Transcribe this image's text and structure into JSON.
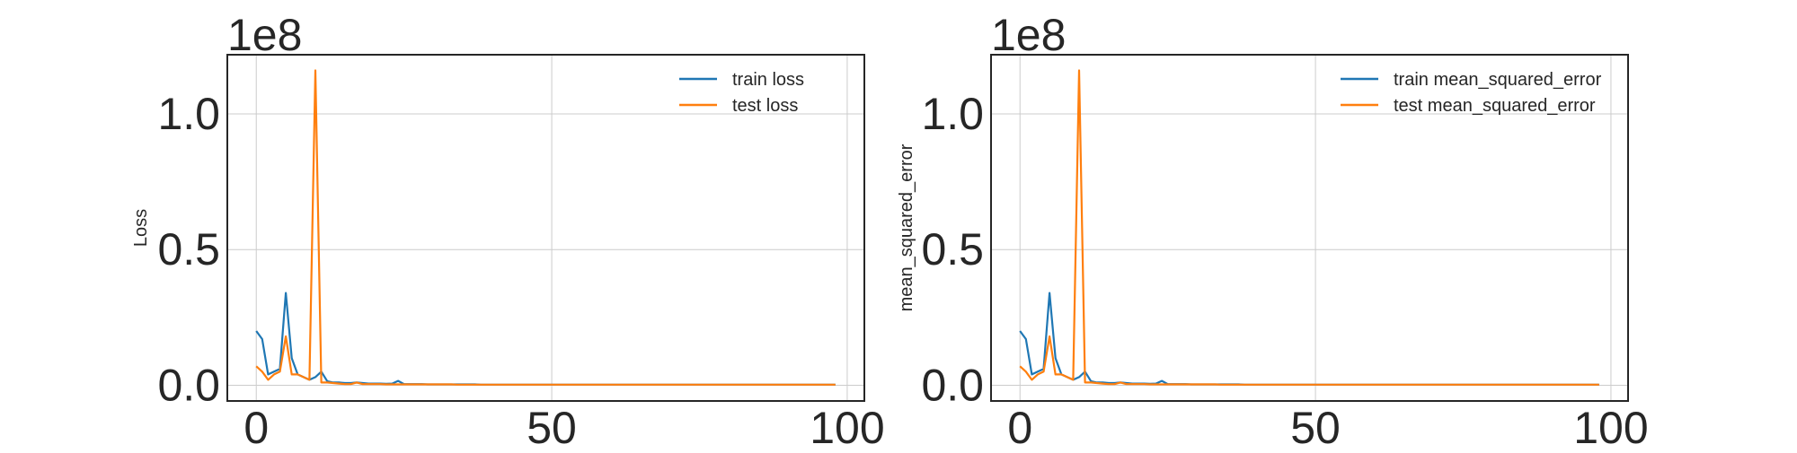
{
  "colors": {
    "train": "#1f77b4",
    "test": "#ff7f0e",
    "grid": "#cccccc",
    "frame": "#262626"
  },
  "chart_data": [
    {
      "type": "line",
      "title": "",
      "xlabel": "",
      "ylabel": "Loss",
      "offset_text": "1e8",
      "scale": 100000000,
      "xlim": [
        -4.9,
        102.9
      ],
      "ylim": [
        -0.058,
        1.218
      ],
      "xticks": [
        0,
        50,
        100
      ],
      "xtick_labels": [
        "0",
        "50",
        "100"
      ],
      "yticks": [
        0.0,
        0.5,
        1.0
      ],
      "ytick_labels": [
        "0.0",
        "0.5",
        "1.0"
      ],
      "grid": true,
      "legend_position": "top-right",
      "series": [
        {
          "name": "train loss",
          "color": "#1f77b4",
          "x": [
            0,
            1,
            2,
            3,
            4,
            5,
            6,
            7,
            8,
            9,
            10,
            11,
            12,
            13,
            14,
            15,
            16,
            17,
            18,
            19,
            20,
            21,
            22,
            23,
            24,
            25,
            26,
            27,
            28,
            29,
            30,
            31,
            32,
            33,
            34,
            35,
            36,
            37,
            38,
            39,
            40,
            45,
            50,
            55,
            60,
            65,
            70,
            75,
            80,
            85,
            90,
            95,
            98
          ],
          "y": [
            0.2,
            0.17,
            0.04,
            0.05,
            0.06,
            0.34,
            0.1,
            0.04,
            0.03,
            0.02,
            0.03,
            0.05,
            0.015,
            0.01,
            0.01,
            0.008,
            0.008,
            0.01,
            0.008,
            0.006,
            0.006,
            0.006,
            0.005,
            0.006,
            0.016,
            0.004,
            0.004,
            0.004,
            0.004,
            0.003,
            0.003,
            0.003,
            0.003,
            0.003,
            0.003,
            0.003,
            0.003,
            0.003,
            0.002,
            0.002,
            0.002,
            0.002,
            0.002,
            0.002,
            0.002,
            0.002,
            0.002,
            0.002,
            0.002,
            0.002,
            0.002,
            0.002,
            0.002
          ]
        },
        {
          "name": "test loss",
          "color": "#ff7f0e",
          "x": [
            0,
            1,
            2,
            3,
            4,
            5,
            6,
            7,
            8,
            9,
            10,
            11,
            12,
            13,
            14,
            15,
            16,
            17,
            18,
            19,
            20,
            21,
            22,
            23,
            24,
            25,
            26,
            27,
            28,
            29,
            30,
            31,
            32,
            33,
            34,
            35,
            36,
            37,
            38,
            39,
            40,
            45,
            50,
            55,
            60,
            65,
            70,
            75,
            80,
            85,
            90,
            95,
            98
          ],
          "y": [
            0.07,
            0.05,
            0.02,
            0.04,
            0.05,
            0.18,
            0.04,
            0.04,
            0.03,
            0.02,
            1.16,
            0.01,
            0.01,
            0.008,
            0.006,
            0.004,
            0.004,
            0.01,
            0.004,
            0.004,
            0.004,
            0.004,
            0.003,
            0.003,
            0.003,
            0.003,
            0.003,
            0.003,
            0.003,
            0.003,
            0.003,
            0.003,
            0.003,
            0.003,
            0.002,
            0.002,
            0.002,
            0.002,
            0.002,
            0.002,
            0.002,
            0.002,
            0.002,
            0.002,
            0.002,
            0.002,
            0.002,
            0.002,
            0.002,
            0.002,
            0.002,
            0.002,
            0.002
          ]
        }
      ]
    },
    {
      "type": "line",
      "title": "",
      "xlabel": "",
      "ylabel": "mean_squared_error",
      "offset_text": "1e8",
      "scale": 100000000,
      "xlim": [
        -4.9,
        102.9
      ],
      "ylim": [
        -0.058,
        1.218
      ],
      "xticks": [
        0,
        50,
        100
      ],
      "xtick_labels": [
        "0",
        "50",
        "100"
      ],
      "yticks": [
        0.0,
        0.5,
        1.0
      ],
      "ytick_labels": [
        "0.0",
        "0.5",
        "1.0"
      ],
      "grid": true,
      "legend_position": "top-right",
      "series": [
        {
          "name": "train mean_squared_error",
          "color": "#1f77b4",
          "x": [
            0,
            1,
            2,
            3,
            4,
            5,
            6,
            7,
            8,
            9,
            10,
            11,
            12,
            13,
            14,
            15,
            16,
            17,
            18,
            19,
            20,
            21,
            22,
            23,
            24,
            25,
            26,
            27,
            28,
            29,
            30,
            31,
            32,
            33,
            34,
            35,
            36,
            37,
            38,
            39,
            40,
            45,
            50,
            55,
            60,
            65,
            70,
            75,
            80,
            85,
            90,
            95,
            98
          ],
          "y": [
            0.2,
            0.17,
            0.04,
            0.05,
            0.06,
            0.34,
            0.1,
            0.04,
            0.03,
            0.02,
            0.03,
            0.05,
            0.015,
            0.01,
            0.01,
            0.008,
            0.008,
            0.01,
            0.008,
            0.006,
            0.006,
            0.006,
            0.005,
            0.006,
            0.016,
            0.004,
            0.004,
            0.004,
            0.004,
            0.003,
            0.003,
            0.003,
            0.003,
            0.003,
            0.003,
            0.003,
            0.003,
            0.003,
            0.002,
            0.002,
            0.002,
            0.002,
            0.002,
            0.002,
            0.002,
            0.002,
            0.002,
            0.002,
            0.002,
            0.002,
            0.002,
            0.002,
            0.002
          ]
        },
        {
          "name": "test mean_squared_error",
          "color": "#ff7f0e",
          "x": [
            0,
            1,
            2,
            3,
            4,
            5,
            6,
            7,
            8,
            9,
            10,
            11,
            12,
            13,
            14,
            15,
            16,
            17,
            18,
            19,
            20,
            21,
            22,
            23,
            24,
            25,
            26,
            27,
            28,
            29,
            30,
            31,
            32,
            33,
            34,
            35,
            36,
            37,
            38,
            39,
            40,
            45,
            50,
            55,
            60,
            65,
            70,
            75,
            80,
            85,
            90,
            95,
            98
          ],
          "y": [
            0.07,
            0.05,
            0.02,
            0.04,
            0.05,
            0.18,
            0.04,
            0.04,
            0.03,
            0.02,
            1.16,
            0.01,
            0.01,
            0.008,
            0.006,
            0.004,
            0.004,
            0.01,
            0.004,
            0.004,
            0.004,
            0.004,
            0.003,
            0.003,
            0.003,
            0.003,
            0.003,
            0.003,
            0.003,
            0.003,
            0.003,
            0.003,
            0.003,
            0.003,
            0.002,
            0.002,
            0.002,
            0.002,
            0.002,
            0.002,
            0.002,
            0.002,
            0.002,
            0.002,
            0.002,
            0.002,
            0.002,
            0.002,
            0.002,
            0.002,
            0.002,
            0.002,
            0.002
          ]
        }
      ]
    }
  ]
}
